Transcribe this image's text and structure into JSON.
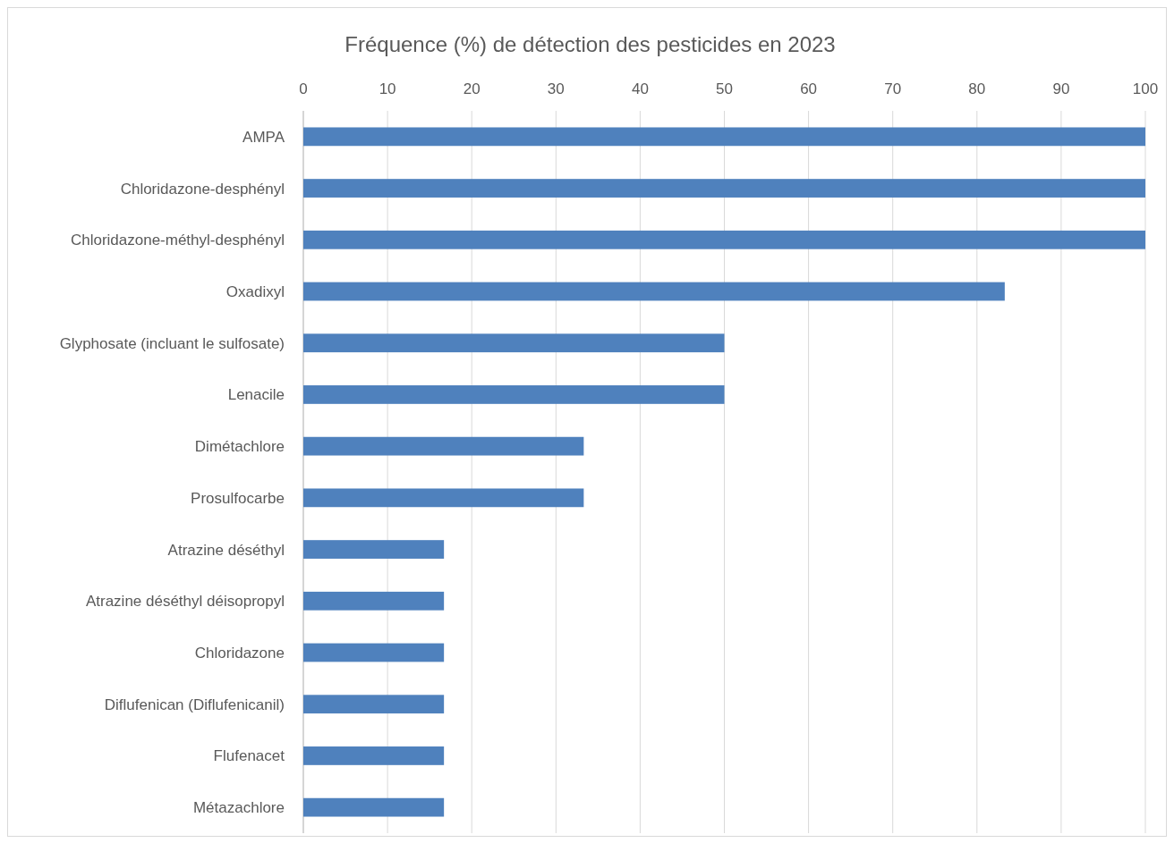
{
  "chart_data": {
    "type": "bar",
    "orientation": "horizontal",
    "title": "Fréquence (%) de détection des pesticides en 2023",
    "categories": [
      "AMPA",
      "Chloridazone-desphényl",
      "Chloridazone-méthyl-desphényl",
      "Oxadixyl",
      "Glyphosate (incluant le sulfosate)",
      "Lenacile",
      "Dimétachlore",
      "Prosulfocarbe",
      "Atrazine déséthyl",
      "Atrazine déséthyl déisopropyl",
      "Chloridazone",
      "Diflufenican (Diflufenicanil)",
      "Flufenacet",
      "Métazachlore"
    ],
    "values": [
      100,
      100,
      100,
      83.3,
      50,
      50,
      33.3,
      33.3,
      16.7,
      16.7,
      16.7,
      16.7,
      16.7,
      16.7
    ],
    "color": "#4f81bd",
    "xlim": [
      0,
      100
    ],
    "xticks": [
      0,
      10,
      20,
      30,
      40,
      50,
      60,
      70,
      80,
      90,
      100
    ],
    "grid": "x"
  }
}
